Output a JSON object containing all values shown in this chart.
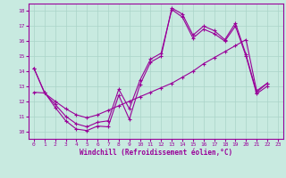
{
  "xlabel": "Windchill (Refroidissement éolien,°C)",
  "xlim": [
    -0.5,
    23.5
  ],
  "ylim": [
    9.5,
    18.5
  ],
  "xticks": [
    0,
    1,
    2,
    3,
    4,
    5,
    6,
    7,
    8,
    9,
    10,
    11,
    12,
    13,
    14,
    15,
    16,
    17,
    18,
    19,
    20,
    21,
    22,
    23
  ],
  "yticks": [
    10,
    11,
    12,
    13,
    14,
    15,
    16,
    17,
    18
  ],
  "background_color": "#c8eae0",
  "grid_color": "#aad4c8",
  "line_color": "#990099",
  "series": [
    {
      "x": [
        0,
        1,
        2,
        3,
        4,
        5,
        6,
        7,
        8,
        9,
        10,
        11,
        12,
        13,
        14,
        15,
        16,
        17,
        18,
        19,
        20,
        21,
        22
      ],
      "y": [
        14.2,
        12.6,
        11.6,
        10.7,
        10.15,
        10.05,
        10.35,
        10.3,
        12.4,
        10.8,
        13.1,
        14.6,
        15.0,
        18.2,
        17.8,
        16.4,
        17.0,
        16.7,
        16.1,
        17.2,
        15.1,
        12.6,
        13.2
      ]
    },
    {
      "x": [
        0,
        1,
        2,
        3,
        4,
        5,
        6,
        7,
        8,
        9,
        10,
        11,
        12,
        13,
        14,
        15,
        16,
        17,
        18,
        19,
        20,
        21,
        22
      ],
      "y": [
        14.2,
        12.55,
        11.8,
        11.0,
        10.5,
        10.3,
        10.6,
        10.7,
        12.8,
        11.5,
        13.4,
        14.8,
        15.2,
        18.1,
        17.6,
        16.2,
        16.8,
        16.5,
        16.0,
        17.0,
        15.0,
        12.5,
        13.0
      ]
    },
    {
      "x": [
        0,
        1,
        2,
        3,
        4,
        5,
        6,
        7,
        8,
        9,
        10,
        11,
        12,
        13,
        14,
        15,
        16,
        17,
        18,
        19,
        20,
        21,
        22
      ],
      "y": [
        12.6,
        12.55,
        12.0,
        11.5,
        11.1,
        10.9,
        11.1,
        11.4,
        11.7,
        12.0,
        12.3,
        12.6,
        12.9,
        13.2,
        13.6,
        14.0,
        14.5,
        14.9,
        15.3,
        15.7,
        16.1,
        12.7,
        13.2
      ]
    }
  ]
}
